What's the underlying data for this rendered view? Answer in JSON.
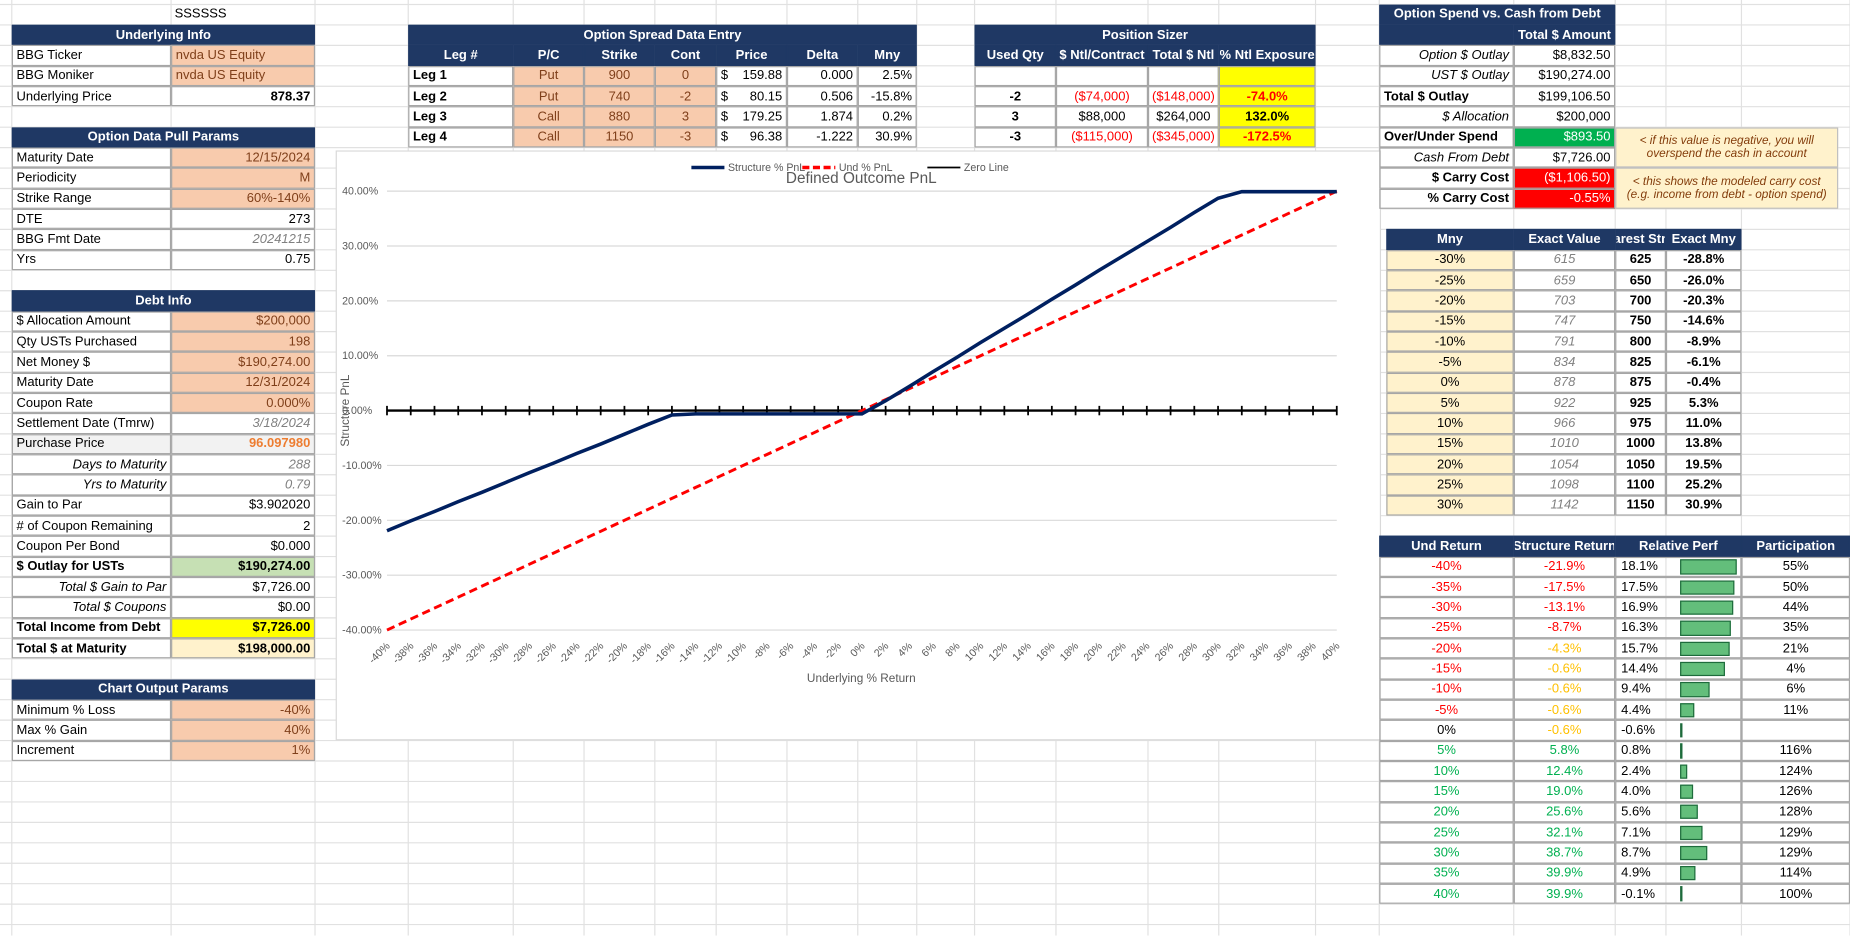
{
  "sheet_label": "SSSSSS",
  "underlying_info": {
    "title": "Underlying Info",
    "rows": [
      [
        "BBG Ticker",
        "nvda US Equity"
      ],
      [
        "BBG Moniker",
        "nvda US Equity"
      ],
      [
        "Underlying Price",
        "878.37"
      ]
    ]
  },
  "option_data_pull_params": {
    "title": "Option Data Pull Params",
    "rows": [
      [
        "Maturity Date",
        "12/15/2024"
      ],
      [
        "Periodicity",
        "M"
      ],
      [
        "Strike Range",
        "60%-140%"
      ],
      [
        "DTE",
        "273"
      ],
      [
        "BBG Fmt Date",
        "20241215"
      ],
      [
        "Yrs",
        "0.75"
      ]
    ]
  },
  "debt_info": {
    "title": "Debt Info",
    "rows": [
      [
        "$ Allocation Amount",
        "$200,000"
      ],
      [
        "Qty USTs Purchased",
        "198"
      ],
      [
        "Net Money $",
        "$190,274.00"
      ],
      [
        "Maturity Date",
        "12/31/2024"
      ],
      [
        "Coupon Rate",
        "0.000%"
      ],
      [
        "Settlement Date (Tmrw)",
        "3/18/2024"
      ],
      [
        "Purchase Price",
        "96.097980"
      ],
      [
        "Days to Maturity",
        "288"
      ],
      [
        "Yrs to Maturity",
        "0.79"
      ],
      [
        "Gain to Par",
        "$3.902020"
      ],
      [
        "# of Coupon Remaining",
        "2"
      ],
      [
        "Coupon Per Bond",
        "$0.000"
      ],
      [
        "$ Outlay for USTs",
        "$190,274.00"
      ],
      [
        "Total $ Gain to Par",
        "$7,726.00"
      ],
      [
        "Total $ Coupons",
        "$0.00"
      ],
      [
        "Total Income from Debt",
        "$7,726.00"
      ],
      [
        "Total $ at Maturity",
        "$198,000.00"
      ]
    ]
  },
  "chart_output_params": {
    "title": "Chart Output Params",
    "rows": [
      [
        "Minimum % Loss",
        "-40%"
      ],
      [
        "Max % Gain",
        "40%"
      ],
      [
        "Increment",
        "1%"
      ]
    ]
  },
  "option_spread": {
    "title": "Option Spread Data Entry",
    "header": [
      "Leg #",
      "P/C",
      "Strike",
      "Cont",
      "Price",
      "Delta",
      "Mny"
    ],
    "rows": [
      [
        "Leg 1",
        "Put",
        "900",
        "0",
        "$",
        "159.88",
        "0.000",
        "2.5%"
      ],
      [
        "Leg 2",
        "Put",
        "740",
        "-2",
        "$",
        "80.15",
        "0.506",
        "-15.8%"
      ],
      [
        "Leg 3",
        "Call",
        "880",
        "3",
        "$",
        "179.25",
        "1.874",
        "0.2%"
      ],
      [
        "Leg 4",
        "Call",
        "1150",
        "-3",
        "$",
        "96.38",
        "-1.222",
        "30.9%"
      ]
    ]
  },
  "position_sizer": {
    "title": "Position Sizer",
    "header": [
      "Used Qty",
      "$ Ntl/Contract",
      "Total $ Ntl",
      "% Ntl Exposure"
    ],
    "rows": [
      [
        "-2",
        "($74,000)",
        "($148,000)",
        "-74.0%"
      ],
      [
        "3",
        "$88,000",
        "$264,000",
        "132.0%"
      ],
      [
        "-3",
        "($115,000)",
        "($345,000)",
        "-172.5%"
      ]
    ]
  },
  "option_spend": {
    "title": "Option Spend vs. Cash from Debt",
    "header": "Total $ Amount",
    "rows": [
      [
        "Option $ Outlay",
        "$8,832.50"
      ],
      [
        "UST $ Outlay",
        "$190,274.00"
      ],
      [
        "Total $ Outlay",
        "$199,106.50"
      ],
      [
        "$ Allocation",
        "$200,000"
      ],
      [
        "Over/Under Spend",
        "$893.50"
      ],
      [
        "Cash From Debt",
        "$7,726.00"
      ],
      [
        "$ Carry Cost",
        "($1,106.50)"
      ],
      [
        "% Carry Cost",
        "-0.55%"
      ]
    ],
    "notes": [
      "< if this value is negative, you will overspend the cash in account",
      "< this shows the modeled carry cost (e.g. income from debt - option spend)"
    ]
  },
  "moneyness": {
    "header": [
      "Mny",
      "Exact Value",
      "Nearest Strike",
      "Exact Mny"
    ],
    "rows": [
      [
        "-30%",
        "615",
        "625",
        "-28.8%"
      ],
      [
        "-25%",
        "659",
        "650",
        "-26.0%"
      ],
      [
        "-20%",
        "703",
        "700",
        "-20.3%"
      ],
      [
        "-15%",
        "747",
        "750",
        "-14.6%"
      ],
      [
        "-10%",
        "791",
        "800",
        "-8.9%"
      ],
      [
        "-5%",
        "834",
        "825",
        "-6.1%"
      ],
      [
        "0%",
        "878",
        "875",
        "-0.4%"
      ],
      [
        "5%",
        "922",
        "925",
        "5.3%"
      ],
      [
        "10%",
        "966",
        "975",
        "11.0%"
      ],
      [
        "15%",
        "1010",
        "1000",
        "13.8%"
      ],
      [
        "20%",
        "1054",
        "1050",
        "19.5%"
      ],
      [
        "25%",
        "1098",
        "1100",
        "25.2%"
      ],
      [
        "30%",
        "1142",
        "1150",
        "30.9%"
      ]
    ]
  },
  "relative_performance": {
    "header": [
      "Und Return",
      "Structure Return",
      "Relative Perf",
      "Participation"
    ],
    "rows": [
      [
        "-40%",
        "-21.9%",
        "18.1%",
        "55%"
      ],
      [
        "-35%",
        "-17.5%",
        "17.5%",
        "50%"
      ],
      [
        "-30%",
        "-13.1%",
        "16.9%",
        "44%"
      ],
      [
        "-25%",
        "-8.7%",
        "16.3%",
        "35%"
      ],
      [
        "-20%",
        "-4.3%",
        "15.7%",
        "21%"
      ],
      [
        "-15%",
        "-0.6%",
        "14.4%",
        "4%"
      ],
      [
        "-10%",
        "-0.6%",
        "9.4%",
        "6%"
      ],
      [
        "-5%",
        "-0.6%",
        "4.4%",
        "11%"
      ],
      [
        "0%",
        "-0.6%",
        "-0.6%"
      ],
      [
        "5%",
        "5.8%",
        "0.8%",
        "116%"
      ],
      [
        "10%",
        "12.4%",
        "2.4%",
        "124%"
      ],
      [
        "15%",
        "19.0%",
        "4.0%",
        "126%"
      ],
      [
        "20%",
        "25.6%",
        "5.6%",
        "128%"
      ],
      [
        "25%",
        "32.1%",
        "7.1%",
        "129%"
      ],
      [
        "30%",
        "38.7%",
        "8.7%",
        "129%"
      ],
      [
        "35%",
        "39.9%",
        "4.9%",
        "114%"
      ],
      [
        "40%",
        "39.9%",
        "-0.1%",
        "100%"
      ]
    ]
  },
  "chart_data": {
    "type": "line",
    "title": "Defined Outcome PnL",
    "x_label": "Underlying % Return",
    "y_label": "Structure PnL",
    "grid": true,
    "categories": [
      "-40%",
      "-38%",
      "-36%",
      "-34%",
      "-32%",
      "-30%",
      "-28%",
      "-26%",
      "-24%",
      "-22%",
      "-20%",
      "-18%",
      "-16%",
      "-14%",
      "-12%",
      "-10%",
      "-8%",
      "-6%",
      "-4%",
      "-2%",
      "0%",
      "2%",
      "4%",
      "6%",
      "8%",
      "10%",
      "12%",
      "14%",
      "16%",
      "18%",
      "20%",
      "22%",
      "24%",
      "26%",
      "28%",
      "30%",
      "32%",
      "34%",
      "36%",
      "38%",
      "40%"
    ],
    "ylim": [
      -40,
      40
    ],
    "yticks": [
      {
        "value": -40,
        "label": "-40.00%"
      },
      {
        "value": -30,
        "label": "-30.00%"
      },
      {
        "value": -20,
        "label": "-20.00%"
      },
      {
        "value": -10,
        "label": "-10.00%"
      },
      {
        "value": 0,
        "label": "0.00%"
      },
      {
        "value": 10,
        "label": "10.00%"
      },
      {
        "value": 20,
        "label": "20.00%"
      },
      {
        "value": 30,
        "label": "30.00%"
      },
      {
        "value": 40,
        "label": "40.00%"
      }
    ],
    "series": [
      {
        "name": "Structure % PnL",
        "color": "#002060",
        "style": "solid",
        "values": [
          -21.9,
          -20.1,
          -18.4,
          -16.6,
          -14.9,
          -13.1,
          -11.3,
          -9.6,
          -7.8,
          -6.1,
          -4.3,
          -2.5,
          -0.8,
          -0.6,
          -0.6,
          -0.6,
          -0.6,
          -0.6,
          -0.6,
          -0.6,
          -0.6,
          1.8,
          4.4,
          7.1,
          9.7,
          12.4,
          15.0,
          17.6,
          20.3,
          22.9,
          25.6,
          28.2,
          30.8,
          33.4,
          36.1,
          38.7,
          39.9,
          39.9,
          39.9,
          39.9,
          39.9
        ]
      },
      {
        "name": "Und % PnL",
        "color": "#ff0000",
        "style": "dashed",
        "values": [
          -40,
          -38,
          -36,
          -34,
          -32,
          -30,
          -28,
          -26,
          -24,
          -22,
          -20,
          -18,
          -16,
          -14,
          -12,
          -10,
          -8,
          -6,
          -4,
          -2,
          0,
          2,
          4,
          6,
          8,
          10,
          12,
          14,
          16,
          18,
          20,
          22,
          24,
          26,
          28,
          30,
          32,
          34,
          36,
          38,
          40
        ]
      },
      {
        "name": "Zero Line",
        "color": "#000000",
        "style": "solid",
        "marker": "plus",
        "values": [
          0,
          0,
          0,
          0,
          0,
          0,
          0,
          0,
          0,
          0,
          0,
          0,
          0,
          0,
          0,
          0,
          0,
          0,
          0,
          0,
          0,
          0,
          0,
          0,
          0,
          0,
          0,
          0,
          0,
          0,
          0,
          0,
          0,
          0,
          0,
          0,
          0,
          0,
          0,
          0,
          0
        ]
      }
    ]
  }
}
